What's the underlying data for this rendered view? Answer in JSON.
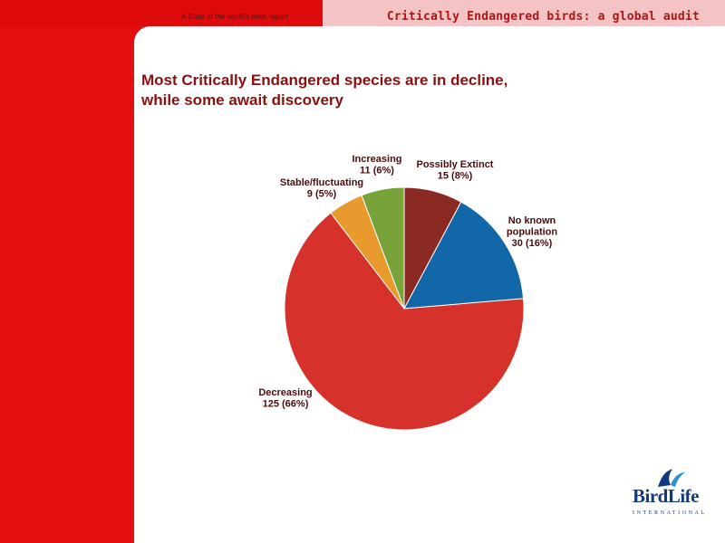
{
  "header": {
    "report_caption": "A State of the world's birds report",
    "title": "Critically Endangered birds: a global audit"
  },
  "slide": {
    "title_line1": "Most Critically Endangered species are in decline,",
    "title_line2": "while some await discovery"
  },
  "chart_data": {
    "type": "pie",
    "slices": [
      {
        "name": "Possibly Extinct",
        "label": "Possibly Extinct",
        "value_label": "15 (8%)",
        "value": 15,
        "percent": 8,
        "color": "#8b2a22"
      },
      {
        "name": "No known population",
        "label": "No known population",
        "value_label": "30 (16%)",
        "value": 30,
        "percent": 16,
        "color": "#1167a8"
      },
      {
        "name": "Decreasing",
        "label": "Decreasing",
        "value_label": "125 (66%)",
        "value": 125,
        "percent": 66,
        "color": "#d6322b"
      },
      {
        "name": "Stable/fluctuating",
        "label": "Stable/fluctuating",
        "value_label": "9 (5%)",
        "value": 9,
        "percent": 5,
        "color": "#e89a2c"
      },
      {
        "name": "Increasing",
        "label": "Increasing",
        "value_label": "11 (6%)",
        "value": 11,
        "percent": 6,
        "color": "#78a23a"
      }
    ]
  },
  "logo": {
    "word": "BirdLife",
    "sub": "INTERNATIONAL",
    "colors": {
      "primary": "#133a7c",
      "accent": "#2a8fd4"
    }
  }
}
